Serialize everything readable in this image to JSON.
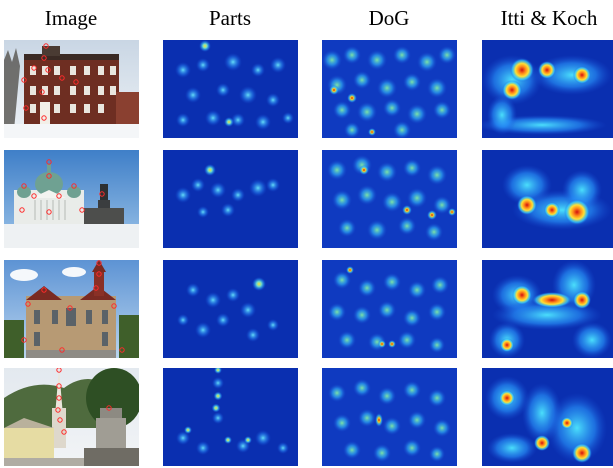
{
  "figure": {
    "columns": [
      "Image",
      "Parts",
      "DoG",
      "Itti & Koch"
    ],
    "rows": [
      {
        "scene": "brick-building"
      },
      {
        "scene": "domed-cathedral"
      },
      {
        "scene": "twin-tower-church"
      },
      {
        "scene": "spire-and-monument"
      }
    ],
    "colors": {
      "map_background": "#0a2fb0",
      "map_mid": "#35d0ff",
      "map_high": "#ffd21a",
      "map_peak": "#d01010",
      "keypoint_marker": "#ff2a2a"
    }
  }
}
